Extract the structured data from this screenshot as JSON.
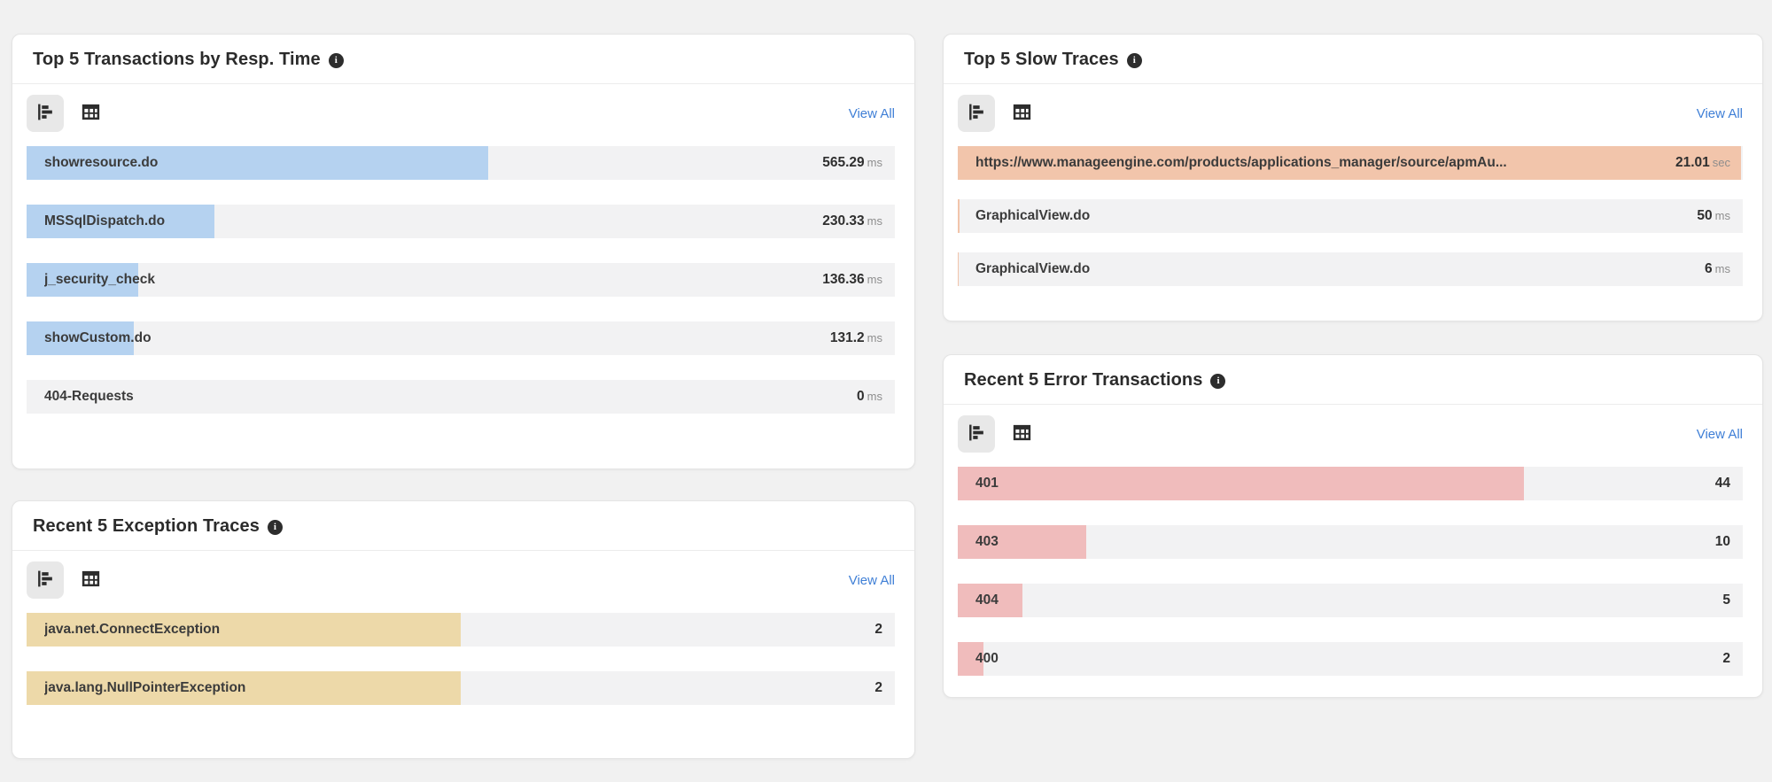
{
  "page": {
    "background": "#f1f1f1"
  },
  "colors": {
    "view_all_link": "#3f7fd6",
    "row_track": "#f2f2f3",
    "title_text": "#2b2b2b",
    "blue_bar": "#b5d2f0",
    "salmon_bar": "#f2c5ab",
    "tan_bar": "#edd9a9",
    "pink_bar": "#f0bcbc"
  },
  "icons": {
    "info_glyph": "i",
    "info": "info-icon",
    "bar_view": "bar-chart-icon",
    "table_view": "table-grid-icon"
  },
  "panels": [
    {
      "id": "top-transactions-by-resp-time",
      "title": "Top 5 Transactions by Resp. Time",
      "view_all_label": "View All",
      "bar_color": "#b5d2f0",
      "rows": [
        {
          "label": "showresource.do",
          "value": "565.29",
          "unit": "ms",
          "amount": 565.29
        },
        {
          "label": "MSSqlDispatch.do",
          "value": "230.33",
          "unit": "ms",
          "amount": 230.33
        },
        {
          "label": "j_security_check",
          "value": "136.36",
          "unit": "ms",
          "amount": 136.36
        },
        {
          "label": "showCustom.do",
          "value": "131.2",
          "unit": "ms",
          "amount": 131.2
        },
        {
          "label": "404-Requests",
          "value": "0",
          "unit": "ms",
          "amount": 0
        }
      ]
    },
    {
      "id": "top-slow-traces",
      "title": "Top 5 Slow Traces",
      "view_all_label": "View All",
      "bar_color": "#f2c5ab",
      "rows": [
        {
          "label": "https://www.manageengine.com/products/applications_manager/source/apmAu...",
          "value": "21.01",
          "unit": "sec",
          "amount": 21010
        },
        {
          "label": "GraphicalView.do",
          "value": "50",
          "unit": "ms",
          "amount": 50
        },
        {
          "label": "GraphicalView.do",
          "value": "6",
          "unit": "ms",
          "amount": 6
        }
      ]
    },
    {
      "id": "recent-exception-traces",
      "title": "Recent 5 Exception Traces",
      "view_all_label": "View All",
      "bar_color": "#edd9a9",
      "rows": [
        {
          "label": "java.net.ConnectException",
          "value": "2",
          "unit": "",
          "amount": 2
        },
        {
          "label": "java.lang.NullPointerException",
          "value": "2",
          "unit": "",
          "amount": 2
        }
      ]
    },
    {
      "id": "recent-error-transactions",
      "title": "Recent 5 Error Transactions",
      "view_all_label": "View All",
      "bar_color": "#f0bcbc",
      "rows": [
        {
          "label": "401",
          "value": "44",
          "unit": "",
          "amount": 44
        },
        {
          "label": "403",
          "value": "10",
          "unit": "",
          "amount": 10
        },
        {
          "label": "404",
          "value": "5",
          "unit": "",
          "amount": 5
        },
        {
          "label": "400",
          "value": "2",
          "unit": "",
          "amount": 2
        }
      ]
    }
  ],
  "chart_data": [
    {
      "type": "bar",
      "orientation": "horizontal",
      "title": "Top 5 Transactions by Resp. Time",
      "categories": [
        "showresource.do",
        "MSSqlDispatch.do",
        "j_security_check",
        "showCustom.do",
        "404-Requests"
      ],
      "values": [
        565.29,
        230.33,
        136.36,
        131.2,
        0
      ],
      "unit": "ms",
      "legend": "none",
      "note": "bar length proportional to value share of panel total"
    },
    {
      "type": "bar",
      "orientation": "horizontal",
      "title": "Top 5 Slow Traces",
      "categories": [
        "https://www.manageengine.com/products/applications_manager/source/apmAu...",
        "GraphicalView.do",
        "GraphicalView.do"
      ],
      "values": [
        21010,
        50,
        6
      ],
      "unit": "ms",
      "display_values": [
        "21.01 sec",
        "50 ms",
        "6 ms"
      ],
      "legend": "none"
    },
    {
      "type": "bar",
      "orientation": "horizontal",
      "title": "Recent 5 Exception Traces",
      "categories": [
        "java.net.ConnectException",
        "java.lang.NullPointerException"
      ],
      "values": [
        2,
        2
      ],
      "unit": "count",
      "legend": "none"
    },
    {
      "type": "bar",
      "orientation": "horizontal",
      "title": "Recent 5 Error Transactions",
      "categories": [
        "401",
        "403",
        "404",
        "400"
      ],
      "values": [
        44,
        10,
        5,
        2
      ],
      "unit": "count",
      "legend": "none"
    }
  ]
}
